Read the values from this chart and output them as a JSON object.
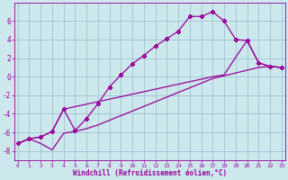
{
  "background_color": "#cce8ec",
  "grid_color": "#99bbcc",
  "line_color": "#990099",
  "marker": "D",
  "markersize": 2.2,
  "linewidth": 0.9,
  "xlabel": "Windchill (Refroidissement éolien,°C)",
  "xlabel_fontsize": 5.5,
  "xlim": [
    -0.3,
    23.3
  ],
  "ylim": [
    -9,
    8
  ],
  "xticks": [
    0,
    1,
    2,
    3,
    4,
    5,
    6,
    7,
    8,
    9,
    10,
    11,
    12,
    13,
    14,
    15,
    16,
    17,
    18,
    19,
    20,
    21,
    22,
    23
  ],
  "yticks": [
    -8,
    -6,
    -4,
    -2,
    0,
    2,
    4,
    6
  ],
  "series1_x": [
    0,
    1,
    2,
    3,
    4,
    5,
    6,
    7,
    8,
    9,
    10,
    11,
    12,
    13,
    14,
    15,
    16,
    17,
    18,
    19,
    20,
    21,
    22,
    23
  ],
  "series1_y": [
    -7.2,
    -6.7,
    -6.5,
    -5.9,
    -3.5,
    -5.8,
    -4.5,
    -2.9,
    -1.1,
    0.2,
    1.4,
    2.3,
    3.3,
    4.1,
    4.9,
    6.5,
    6.5,
    7.0,
    6.0,
    4.0,
    3.9,
    1.5,
    1.1,
    1.0
  ],
  "series2_x": [
    0,
    1,
    2,
    3,
    4,
    17,
    18,
    19,
    20,
    21,
    22,
    23
  ],
  "series2_y": [
    -7.2,
    -6.7,
    -6.5,
    -5.9,
    -3.5,
    0.0,
    0.2,
    2.1,
    3.9,
    1.5,
    1.1,
    1.0
  ],
  "series3_x": [
    0,
    1,
    2,
    3,
    4,
    5,
    6,
    7,
    8,
    9,
    10,
    11,
    12,
    13,
    14,
    15,
    16,
    17,
    18,
    19,
    20,
    21,
    22,
    23
  ],
  "series3_y": [
    -7.2,
    -6.7,
    -7.2,
    -7.9,
    -6.1,
    -5.9,
    -5.6,
    -5.2,
    -4.7,
    -4.2,
    -3.7,
    -3.2,
    -2.7,
    -2.2,
    -1.7,
    -1.2,
    -0.7,
    -0.2,
    0.1,
    0.4,
    0.7,
    1.0,
    1.1,
    1.0
  ]
}
